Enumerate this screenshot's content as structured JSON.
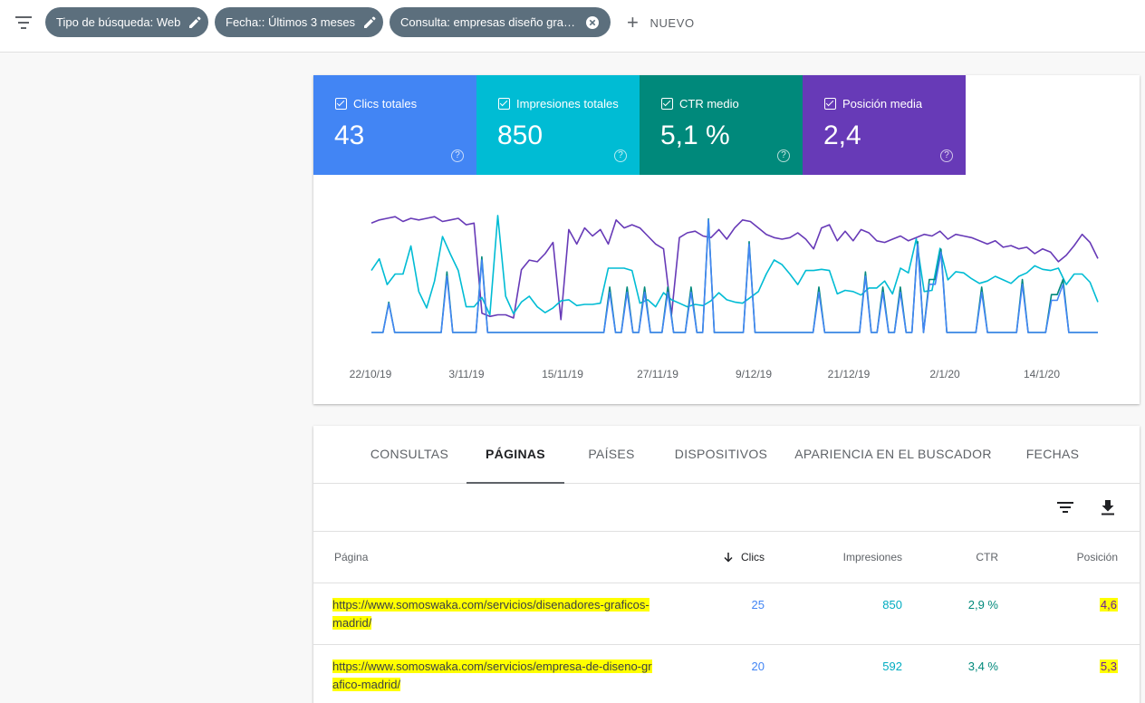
{
  "filters": {
    "chips": [
      {
        "label": "Tipo de búsqueda: Web",
        "icon": "edit-icon"
      },
      {
        "label": "Fecha:: Últimos 3 meses",
        "icon": "edit-icon"
      },
      {
        "label": "Consulta: empresas diseño grafi...",
        "icon": "close-icon"
      }
    ],
    "new_label": "NUEVO"
  },
  "metrics": [
    {
      "label": "Clics totales",
      "value": "43",
      "color": "#4285f4"
    },
    {
      "label": "Impresiones totales",
      "value": "850",
      "color": "#00bcd4"
    },
    {
      "label": "CTR medio",
      "value": "5,1 %",
      "color": "#00897b"
    },
    {
      "label": "Posición media",
      "value": "2,4",
      "color": "#673ab7"
    }
  ],
  "help_glyph": "?",
  "chart_data": {
    "type": "line",
    "x_tick_labels": [
      "22/10/19",
      "3/11/19",
      "15/11/19",
      "27/11/19",
      "9/12/19",
      "21/12/19",
      "2/1/20",
      "14/1/20"
    ],
    "series": [
      {
        "name": "Posición media",
        "color": "#673ab7",
        "values": [
          2.2,
          2.0,
          1.9,
          1.8,
          2.1,
          1.9,
          2.0,
          1.9,
          1.8,
          2.1,
          2.0,
          1.9,
          2.3,
          2.2,
          7.8,
          8.0,
          7.9,
          7.9,
          8.1,
          5.1,
          4.5,
          4.6,
          4.1,
          3.4,
          8.2,
          2.6,
          3.5,
          2.5,
          3.0,
          2.6,
          3.5,
          2.0,
          2.5,
          2.3,
          2.5,
          3.0,
          3.5,
          3.8,
          7.9,
          3.1,
          2.8,
          2.7,
          3.0,
          3.1,
          2.6,
          3.2,
          2.5,
          2.0,
          2.1,
          2.5,
          2.9,
          3.1,
          3.2,
          3.1,
          2.8,
          3.2,
          3.8,
          2.5,
          2.3,
          3.3,
          2.7,
          3.3,
          2.6,
          2.8,
          3.3,
          3.4,
          3.2,
          3.0,
          3.3,
          3.1,
          2.9,
          3.0,
          2.7,
          3.2,
          2.9,
          3.0,
          3.1,
          3.3,
          3.5,
          3.3,
          3.7,
          3.6,
          3.8,
          3.7,
          4.1,
          3.8,
          4.0,
          4.6,
          4.2,
          3.6,
          2.9,
          3.4,
          4.4
        ]
      },
      {
        "name": "Impresiones totales",
        "color": "#00bcd4",
        "values": [
          53,
          63,
          41,
          50,
          50,
          74,
          35,
          21,
          44,
          82,
          67,
          53,
          22,
          22,
          30,
          15,
          100,
          31,
          16,
          26,
          31,
          22,
          17,
          21,
          27,
          28,
          23,
          24,
          24,
          25,
          55,
          55,
          55,
          53,
          25,
          28,
          22,
          34,
          28,
          25,
          22,
          24,
          23,
          27,
          34,
          28,
          26,
          25,
          30,
          35,
          50,
          62,
          58,
          50,
          41,
          53,
          53,
          54,
          53,
          33,
          36,
          35,
          32,
          38,
          38,
          44,
          33,
          55,
          51,
          80,
          35,
          36,
          72,
          45,
          52,
          51,
          46,
          42,
          44,
          48,
          45,
          42,
          48,
          51,
          57,
          54,
          53,
          55,
          41,
          50,
          50,
          43,
          26
        ]
      },
      {
        "name": "CTR medio",
        "color": "#00897b",
        "values": [
          0,
          0,
          0,
          20,
          0,
          0,
          0,
          0,
          0,
          0,
          0,
          0,
          0,
          40,
          0,
          0,
          0,
          0,
          0,
          50,
          0,
          0,
          0,
          0,
          0,
          0,
          0,
          0,
          0,
          0,
          0,
          0,
          0,
          0,
          0,
          0,
          0,
          0,
          0,
          0,
          0,
          30,
          0,
          0,
          30,
          0,
          0,
          30,
          0,
          0,
          0,
          30,
          0,
          0,
          0,
          30,
          0,
          0,
          75,
          0,
          0,
          0,
          0,
          0,
          0,
          60,
          0,
          0,
          0,
          0,
          0,
          0,
          0,
          0,
          0,
          0,
          0,
          30,
          0,
          0,
          0,
          0,
          0,
          0,
          0,
          40,
          0,
          0,
          30,
          0,
          0,
          30,
          0,
          0,
          60,
          0,
          35,
          35,
          55,
          0,
          0,
          0,
          0,
          0,
          0,
          30,
          0,
          0,
          0,
          0,
          0,
          0,
          35,
          0,
          0,
          0,
          0,
          25,
          25,
          35,
          0,
          0,
          0,
          0,
          0,
          0
        ]
      },
      {
        "name": "Clics totales",
        "color": "#4285f4",
        "values": [
          0,
          0,
          0,
          18,
          0,
          0,
          0,
          0,
          0,
          0,
          0,
          0,
          0,
          35,
          0,
          0,
          0,
          0,
          0,
          45,
          0,
          0,
          0,
          0,
          0,
          0,
          0,
          0,
          0,
          0,
          0,
          0,
          0,
          0,
          0,
          0,
          0,
          0,
          0,
          0,
          0,
          25,
          0,
          0,
          25,
          0,
          0,
          25,
          0,
          0,
          0,
          25,
          0,
          0,
          0,
          25,
          0,
          0,
          70,
          0,
          0,
          0,
          0,
          0,
          0,
          55,
          0,
          0,
          0,
          0,
          0,
          0,
          0,
          0,
          0,
          0,
          0,
          25,
          0,
          0,
          0,
          0,
          0,
          0,
          0,
          35,
          0,
          0,
          25,
          0,
          0,
          25,
          0,
          0,
          55,
          0,
          30,
          30,
          50,
          0,
          0,
          0,
          0,
          0,
          0,
          25,
          0,
          0,
          0,
          0,
          0,
          0,
          30,
          0,
          0,
          0,
          0,
          20,
          20,
          30,
          0,
          0,
          0,
          0,
          0,
          0
        ]
      }
    ]
  },
  "tabs": [
    "CONSULTAS",
    "PÁGINAS",
    "PAÍSES",
    "DISPOSITIVOS",
    "APARIENCIA EN EL BUSCADOR",
    "FECHAS"
  ],
  "table": {
    "headers": {
      "page": "Página",
      "clicks": "Clics",
      "impressions": "Impresiones",
      "ctr": "CTR",
      "position": "Posición"
    },
    "rows": [
      {
        "url_line1": "https://www.somoswaka.com/servicios/disenadores-graficos-",
        "url_line2": "madrid/",
        "clicks": "25",
        "impressions": "850",
        "ctr": "2,9 %",
        "position": "4,6"
      },
      {
        "url_line1": "https://www.somoswaka.com/servicios/empresa-de-diseno-gr",
        "url_line2": "afico-madrid/",
        "clicks": "20",
        "impressions": "592",
        "ctr": "3,4 %",
        "position": "5,3"
      }
    ]
  }
}
